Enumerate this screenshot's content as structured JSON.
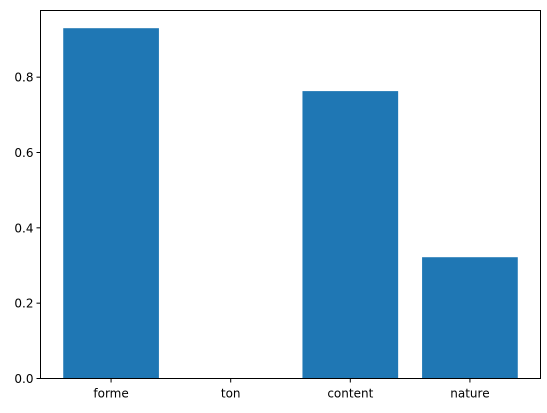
{
  "chart_data": {
    "type": "bar",
    "categories": [
      "forme",
      "ton",
      "content",
      "nature"
    ],
    "values": [
      0.93,
      0.0,
      0.763,
      0.322
    ],
    "title": "",
    "xlabel": "",
    "ylabel": "",
    "ylim": [
      0,
      0.977
    ],
    "yticks": [
      0.0,
      0.2,
      0.4,
      0.6,
      0.8
    ],
    "ytick_labels": [
      "0.0",
      "0.2",
      "0.4",
      "0.6",
      "0.8"
    ],
    "bar_color": "#1f77b4",
    "grid": false,
    "legend": "none"
  }
}
